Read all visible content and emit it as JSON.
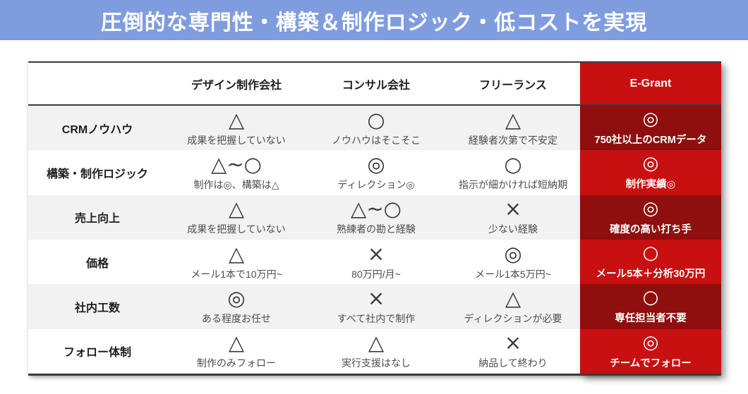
{
  "banner": {
    "title": "圧倒的な専門性・構築＆制作ロジック・低コストを実現"
  },
  "colors": {
    "banner_blue": "#7F9DDE",
    "brand_red": "#C81010",
    "brand_red_dark": "#8F0E0E",
    "stripe_gray": "#F2F2F2",
    "border_dark": "#3a3a3a"
  },
  "table": {
    "columns": [
      "",
      "デザイン制作会社",
      "コンサル会社",
      "フリーランス",
      "E-Grant"
    ],
    "rows": [
      {
        "label": "CRMノウハウ",
        "cells": [
          {
            "symbol": "△",
            "note": "成果を把握していない"
          },
          {
            "symbol": "○",
            "note": "ノウハウはそこそこ"
          },
          {
            "symbol": "△",
            "note": "経験者次第で不安定"
          },
          {
            "symbol": "◎",
            "note": "750社以上のCRMデータ"
          }
        ]
      },
      {
        "label": "構築・制作ロジック",
        "cells": [
          {
            "symbol": "△~○",
            "note": "制作は◎、構築は△"
          },
          {
            "symbol": "◎",
            "note": "ディレクション◎"
          },
          {
            "symbol": "○",
            "note": "指示が細かければ短納期"
          },
          {
            "symbol": "◎",
            "note": "制作実績◎"
          }
        ]
      },
      {
        "label": "売上向上",
        "cells": [
          {
            "symbol": "△",
            "note": "成果を把握していない"
          },
          {
            "symbol": "△~○",
            "note": "熟練者の勘と経験"
          },
          {
            "symbol": "×",
            "note": "少ない経験"
          },
          {
            "symbol": "◎",
            "note": "確度の高い打ち手"
          }
        ]
      },
      {
        "label": "価格",
        "cells": [
          {
            "symbol": "△",
            "note": "メール1本で10万円~"
          },
          {
            "symbol": "×",
            "note": "80万円/月~"
          },
          {
            "symbol": "◎",
            "note": "メール1本5万円~"
          },
          {
            "symbol": "○",
            "note": "メール5本＋分析30万円"
          }
        ]
      },
      {
        "label": "社内工数",
        "cells": [
          {
            "symbol": "◎",
            "note": "ある程度お任せ"
          },
          {
            "symbol": "×",
            "note": "すべて社内で制作"
          },
          {
            "symbol": "△",
            "note": "ディレクションが必要"
          },
          {
            "symbol": "○",
            "note": "専任担当者不要"
          }
        ]
      },
      {
        "label": "フォロー体制",
        "cells": [
          {
            "symbol": "△",
            "note": "制作のみフォロー"
          },
          {
            "symbol": "△",
            "note": "実行支援はなし"
          },
          {
            "symbol": "×",
            "note": "納品して終わり"
          },
          {
            "symbol": "◎",
            "note": "チームでフォロー"
          }
        ]
      }
    ]
  }
}
